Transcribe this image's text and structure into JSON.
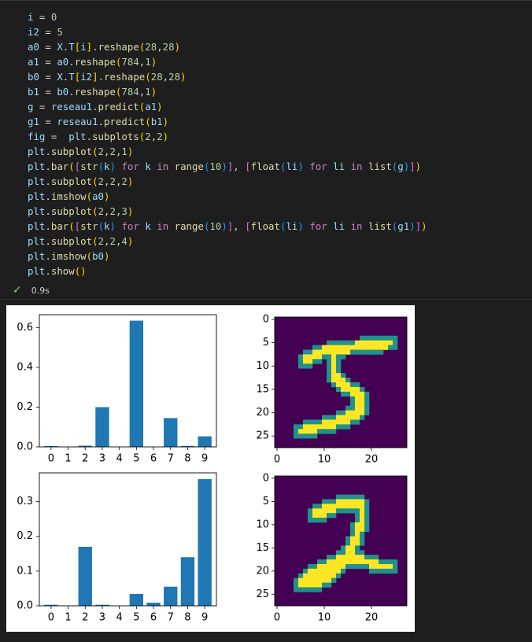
{
  "code_lines": [
    [
      [
        "v",
        "i"
      ],
      [
        "o",
        " = "
      ],
      [
        "n",
        "0"
      ]
    ],
    [
      [
        "v",
        "i2"
      ],
      [
        "o",
        " = "
      ],
      [
        "n",
        "5"
      ]
    ],
    [
      [
        "v",
        "a0"
      ],
      [
        "o",
        " = "
      ],
      [
        "v",
        "X"
      ],
      [
        "o",
        "."
      ],
      [
        "v",
        "T"
      ],
      [
        "b1",
        "["
      ],
      [
        "v",
        "i"
      ],
      [
        "b1",
        "]"
      ],
      [
        "o",
        "."
      ],
      [
        "f",
        "reshape"
      ],
      [
        "b1",
        "("
      ],
      [
        "n",
        "28"
      ],
      [
        "o",
        ","
      ],
      [
        "n",
        "28"
      ],
      [
        "b1",
        ")"
      ]
    ],
    [
      [
        "v",
        "a1"
      ],
      [
        "o",
        " = "
      ],
      [
        "v",
        "a0"
      ],
      [
        "o",
        "."
      ],
      [
        "f",
        "reshape"
      ],
      [
        "b1",
        "("
      ],
      [
        "n",
        "784"
      ],
      [
        "o",
        ","
      ],
      [
        "n",
        "1"
      ],
      [
        "b1",
        ")"
      ]
    ],
    [
      [
        "v",
        "b0"
      ],
      [
        "o",
        " = "
      ],
      [
        "v",
        "X"
      ],
      [
        "o",
        "."
      ],
      [
        "v",
        "T"
      ],
      [
        "b1",
        "["
      ],
      [
        "v",
        "i2"
      ],
      [
        "b1",
        "]"
      ],
      [
        "o",
        "."
      ],
      [
        "f",
        "reshape"
      ],
      [
        "b1",
        "("
      ],
      [
        "n",
        "28"
      ],
      [
        "o",
        ","
      ],
      [
        "n",
        "28"
      ],
      [
        "b1",
        ")"
      ]
    ],
    [
      [
        "v",
        "b1"
      ],
      [
        "o",
        " = "
      ],
      [
        "v",
        "b0"
      ],
      [
        "o",
        "."
      ],
      [
        "f",
        "reshape"
      ],
      [
        "b1",
        "("
      ],
      [
        "n",
        "784"
      ],
      [
        "o",
        ","
      ],
      [
        "n",
        "1"
      ],
      [
        "b1",
        ")"
      ]
    ],
    [
      [
        "v",
        "g"
      ],
      [
        "o",
        " = "
      ],
      [
        "v",
        "reseau1"
      ],
      [
        "o",
        "."
      ],
      [
        "f",
        "predict"
      ],
      [
        "b1",
        "("
      ],
      [
        "v",
        "a1"
      ],
      [
        "b1",
        ")"
      ]
    ],
    [
      [
        "v",
        "g1"
      ],
      [
        "o",
        " = "
      ],
      [
        "v",
        "reseau1"
      ],
      [
        "o",
        "."
      ],
      [
        "f",
        "predict"
      ],
      [
        "b1",
        "("
      ],
      [
        "v",
        "b1"
      ],
      [
        "b1",
        ")"
      ]
    ],
    [
      [
        "v",
        "fig"
      ],
      [
        "o",
        " =  "
      ],
      [
        "v",
        "plt"
      ],
      [
        "o",
        "."
      ],
      [
        "f",
        "subplots"
      ],
      [
        "b1",
        "("
      ],
      [
        "n",
        "2"
      ],
      [
        "o",
        ","
      ],
      [
        "n",
        "2"
      ],
      [
        "b1",
        ")"
      ]
    ],
    [
      [
        "v",
        "plt"
      ],
      [
        "o",
        "."
      ],
      [
        "f",
        "subplot"
      ],
      [
        "b1",
        "("
      ],
      [
        "n",
        "2"
      ],
      [
        "o",
        ","
      ],
      [
        "n",
        "2"
      ],
      [
        "o",
        ","
      ],
      [
        "n",
        "1"
      ],
      [
        "b1",
        ")"
      ]
    ],
    [
      [
        "v",
        "plt"
      ],
      [
        "o",
        "."
      ],
      [
        "f",
        "bar"
      ],
      [
        "b1",
        "("
      ],
      [
        "b2",
        "["
      ],
      [
        "f",
        "str"
      ],
      [
        "b3",
        "("
      ],
      [
        "v",
        "k"
      ],
      [
        "b3",
        ")"
      ],
      [
        "o",
        " "
      ],
      [
        "k",
        "for"
      ],
      [
        "o",
        " "
      ],
      [
        "v",
        "k"
      ],
      [
        "o",
        " "
      ],
      [
        "k",
        "in"
      ],
      [
        "o",
        " "
      ],
      [
        "f",
        "range"
      ],
      [
        "b3",
        "("
      ],
      [
        "n",
        "10"
      ],
      [
        "b3",
        ")"
      ],
      [
        "b2",
        "]"
      ],
      [
        "o",
        ", "
      ],
      [
        "b2",
        "["
      ],
      [
        "f",
        "float"
      ],
      [
        "b3",
        "("
      ],
      [
        "v",
        "li"
      ],
      [
        "b3",
        ")"
      ],
      [
        "o",
        " "
      ],
      [
        "k",
        "for"
      ],
      [
        "o",
        " "
      ],
      [
        "v",
        "li"
      ],
      [
        "o",
        " "
      ],
      [
        "k",
        "in"
      ],
      [
        "o",
        " "
      ],
      [
        "f",
        "list"
      ],
      [
        "b3",
        "("
      ],
      [
        "v",
        "g"
      ],
      [
        "b3",
        ")"
      ],
      [
        "b2",
        "]"
      ],
      [
        "b1",
        ")"
      ]
    ],
    [
      [
        "v",
        "plt"
      ],
      [
        "o",
        "."
      ],
      [
        "f",
        "subplot"
      ],
      [
        "b1",
        "("
      ],
      [
        "n",
        "2"
      ],
      [
        "o",
        ","
      ],
      [
        "n",
        "2"
      ],
      [
        "o",
        ","
      ],
      [
        "n",
        "2"
      ],
      [
        "b1",
        ")"
      ]
    ],
    [
      [
        "v",
        "plt"
      ],
      [
        "o",
        "."
      ],
      [
        "f",
        "imshow"
      ],
      [
        "b1",
        "("
      ],
      [
        "v",
        "a0"
      ],
      [
        "b1",
        ")"
      ]
    ],
    [
      [
        "v",
        "plt"
      ],
      [
        "o",
        "."
      ],
      [
        "f",
        "subplot"
      ],
      [
        "b1",
        "("
      ],
      [
        "n",
        "2"
      ],
      [
        "o",
        ","
      ],
      [
        "n",
        "2"
      ],
      [
        "o",
        ","
      ],
      [
        "n",
        "3"
      ],
      [
        "b1",
        ")"
      ]
    ],
    [
      [
        "v",
        "plt"
      ],
      [
        "o",
        "."
      ],
      [
        "f",
        "bar"
      ],
      [
        "b1",
        "("
      ],
      [
        "b2",
        "["
      ],
      [
        "f",
        "str"
      ],
      [
        "b3",
        "("
      ],
      [
        "v",
        "k"
      ],
      [
        "b3",
        ")"
      ],
      [
        "o",
        " "
      ],
      [
        "k",
        "for"
      ],
      [
        "o",
        " "
      ],
      [
        "v",
        "k"
      ],
      [
        "o",
        " "
      ],
      [
        "k",
        "in"
      ],
      [
        "o",
        " "
      ],
      [
        "f",
        "range"
      ],
      [
        "b3",
        "("
      ],
      [
        "n",
        "10"
      ],
      [
        "b3",
        ")"
      ],
      [
        "b2",
        "]"
      ],
      [
        "o",
        ", "
      ],
      [
        "b2",
        "["
      ],
      [
        "f",
        "float"
      ],
      [
        "b3",
        "("
      ],
      [
        "v",
        "li"
      ],
      [
        "b3",
        ")"
      ],
      [
        "o",
        " "
      ],
      [
        "k",
        "for"
      ],
      [
        "o",
        " "
      ],
      [
        "v",
        "li"
      ],
      [
        "o",
        " "
      ],
      [
        "k",
        "in"
      ],
      [
        "o",
        " "
      ],
      [
        "f",
        "list"
      ],
      [
        "b3",
        "("
      ],
      [
        "v",
        "g1"
      ],
      [
        "b3",
        ")"
      ],
      [
        "b2",
        "]"
      ],
      [
        "b1",
        ")"
      ]
    ],
    [
      [
        "v",
        "plt"
      ],
      [
        "o",
        "."
      ],
      [
        "f",
        "subplot"
      ],
      [
        "b1",
        "("
      ],
      [
        "n",
        "2"
      ],
      [
        "o",
        ","
      ],
      [
        "n",
        "2"
      ],
      [
        "o",
        ","
      ],
      [
        "n",
        "4"
      ],
      [
        "b1",
        ")"
      ]
    ],
    [
      [
        "v",
        "plt"
      ],
      [
        "o",
        "."
      ],
      [
        "f",
        "imshow"
      ],
      [
        "b1",
        "("
      ],
      [
        "v",
        "b0"
      ],
      [
        "b1",
        ")"
      ]
    ],
    [
      [
        "v",
        "plt"
      ],
      [
        "o",
        "."
      ],
      [
        "f",
        "show"
      ],
      [
        "b1",
        "()"
      ]
    ]
  ],
  "status": {
    "time": "0.9s"
  },
  "colors": {
    "bar": "#1f77b4",
    "img_bg": "#440154",
    "img_fg": "#fde725",
    "img_mid": "#21918c"
  },
  "chart_data": [
    {
      "type": "bar",
      "categories": [
        "0",
        "1",
        "2",
        "3",
        "4",
        "5",
        "6",
        "7",
        "8",
        "9"
      ],
      "values": [
        0.004,
        0.0,
        0.006,
        0.2,
        0.0,
        0.635,
        0.0,
        0.145,
        0.005,
        0.053
      ],
      "ylim": [
        0,
        0.665
      ],
      "yticks": [
        "0.0",
        "0.2",
        "0.4",
        "0.6"
      ],
      "ytick_values": [
        0,
        0.2,
        0.4,
        0.6
      ],
      "grid": false
    },
    {
      "type": "heatmap",
      "image": "digit-5",
      "xticks": [
        "0",
        "10",
        "20"
      ],
      "yticks": [
        "0",
        "5",
        "10",
        "15",
        "20",
        "25"
      ]
    },
    {
      "type": "bar",
      "categories": [
        "0",
        "1",
        "2",
        "3",
        "4",
        "5",
        "6",
        "7",
        "8",
        "9"
      ],
      "values": [
        0.003,
        0.0,
        0.17,
        0.003,
        0.0,
        0.034,
        0.009,
        0.055,
        0.14,
        0.365
      ],
      "ylim": [
        0,
        0.383
      ],
      "yticks": [
        "0.0",
        "0.1",
        "0.2",
        "0.3"
      ],
      "ytick_values": [
        0,
        0.1,
        0.2,
        0.3
      ],
      "grid": false
    },
    {
      "type": "heatmap",
      "image": "digit-2",
      "xticks": [
        "0",
        "10",
        "20"
      ],
      "yticks": [
        "0",
        "5",
        "10",
        "15",
        "20",
        "25"
      ]
    }
  ]
}
